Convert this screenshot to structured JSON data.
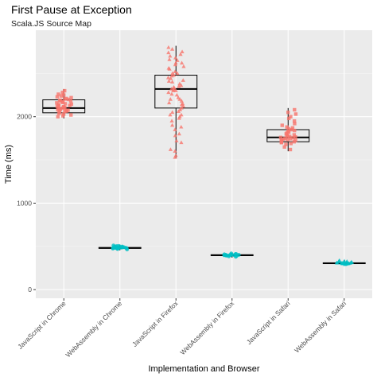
{
  "colors": {
    "panel_bg": "#EBEBEB",
    "grid_major": "#FFFFFF",
    "grid_minor": "#F5F5F5",
    "javascript": "#F8766D",
    "webassembly": "#00BFC4",
    "box_line": "#000000"
  },
  "chart_data": {
    "type": "box",
    "title": "First Pause at Exception",
    "subtitle": "Scala.JS Source Map",
    "xlabel": "Implementation and Browser",
    "ylabel": "Time (ms)",
    "ylim": [
      -100,
      3000
    ],
    "yticks": [
      0,
      1000,
      2000
    ],
    "grid": true,
    "categories": [
      "JavaScript in Chrome",
      "WebAssembly in Chrome",
      "JavaScript in Firefox",
      "WebAssembly in Firefox",
      "JavaScript in Safari",
      "WebAssembly in Safari"
    ],
    "boxes": [
      {
        "category": "JavaScript in Chrome",
        "group": "javascript",
        "min": 1980,
        "q1": 2045,
        "median": 2100,
        "q3": 2195,
        "max": 2320
      },
      {
        "category": "WebAssembly in Chrome",
        "group": "webassembly",
        "min": 455,
        "q1": 477,
        "median": 482,
        "q3": 487,
        "max": 515
      },
      {
        "category": "JavaScript in Firefox",
        "group": "javascript",
        "min": 1520,
        "q1": 2100,
        "median": 2320,
        "q3": 2480,
        "max": 2820
      },
      {
        "category": "WebAssembly in Firefox",
        "group": "webassembly",
        "min": 370,
        "q1": 393,
        "median": 398,
        "q3": 403,
        "max": 425
      },
      {
        "category": "JavaScript in Safari",
        "group": "javascript",
        "min": 1600,
        "q1": 1710,
        "median": 1760,
        "q3": 1850,
        "max": 2100
      },
      {
        "category": "WebAssembly in Safari",
        "group": "webassembly",
        "min": 285,
        "q1": 300,
        "median": 305,
        "q3": 310,
        "max": 340
      }
    ],
    "points": [
      {
        "category": "JavaScript in Chrome",
        "shape": "square",
        "values": [
          2030,
          2060,
          2080,
          2090,
          2100,
          2110,
          2120,
          2130,
          2150,
          2170,
          2190,
          2200,
          2210,
          2230,
          2250,
          2050,
          2070,
          2095,
          2105,
          2115,
          2140,
          2160,
          2180,
          2220,
          2000,
          2010,
          2020,
          2040,
          2280,
          2300,
          2065,
          2085,
          2125,
          2145,
          2165,
          2185,
          2205,
          2240,
          2260,
          2075
        ]
      },
      {
        "category": "WebAssembly in Chrome",
        "shape": "circle",
        "values": [
          470,
          475,
          478,
          480,
          481,
          482,
          483,
          485,
          486,
          488,
          490,
          492,
          495,
          500,
          505,
          510,
          476,
          484,
          489,
          498,
          465,
          503
        ]
      },
      {
        "category": "JavaScript in Firefox",
        "shape": "triangle",
        "values": [
          1530,
          1550,
          1600,
          1700,
          1780,
          1850,
          1900,
          1950,
          2000,
          2020,
          2050,
          2080,
          2100,
          2120,
          2150,
          2180,
          2200,
          2220,
          2250,
          2280,
          2300,
          2310,
          2320,
          2330,
          2350,
          2380,
          2400,
          2420,
          2450,
          2480,
          2500,
          2520,
          2550,
          2580,
          2600,
          2620,
          2650,
          2680,
          2700,
          2720,
          2750,
          2780,
          2800,
          1620,
          1800,
          1980,
          2060,
          2140,
          2260,
          2360,
          2440,
          2560,
          2660,
          2740,
          1720,
          1880,
          2020,
          2200,
          2300,
          2410,
          2500,
          2620,
          2160,
          2340,
          2470
        ]
      },
      {
        "category": "WebAssembly in Firefox",
        "shape": "circle",
        "values": [
          385,
          390,
          393,
          395,
          397,
          398,
          399,
          400,
          401,
          403,
          405,
          408,
          412,
          418,
          380,
          396,
          402,
          410
        ]
      },
      {
        "category": "JavaScript in Safari",
        "shape": "square",
        "values": [
          1620,
          1650,
          1680,
          1700,
          1710,
          1720,
          1730,
          1740,
          1750,
          1760,
          1770,
          1780,
          1800,
          1820,
          1840,
          1860,
          1880,
          1900,
          1950,
          2000,
          2050,
          2080,
          1690,
          1735,
          1765,
          1790,
          1810,
          1830,
          1850,
          1870,
          1920,
          1980,
          2030,
          1745,
          1755,
          1775,
          1705,
          1725
        ]
      },
      {
        "category": "WebAssembly in Safari",
        "shape": "triangle",
        "values": [
          290,
          295,
          298,
          300,
          302,
          303,
          304,
          305,
          306,
          307,
          308,
          310,
          312,
          315,
          320,
          325,
          330,
          335,
          300,
          305,
          310,
          318,
          328
        ]
      }
    ]
  }
}
